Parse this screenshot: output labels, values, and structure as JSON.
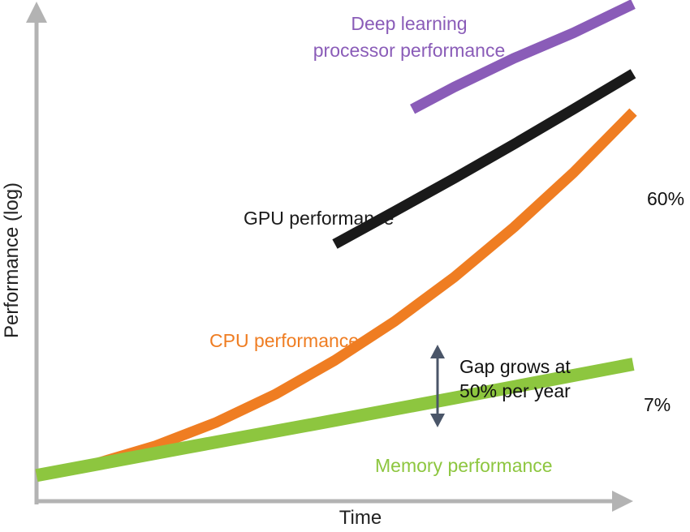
{
  "chart_data": {
    "type": "line",
    "title": "",
    "xlabel": "Time",
    "ylabel": "Performance (log)",
    "x_scale": "normalized time (0 = start, 1 = end)",
    "y_scale": "normalized log performance (0 = bottom, 1 = top)",
    "xlim": [
      0,
      1
    ],
    "ylim": [
      0,
      1
    ],
    "grid": false,
    "series": [
      {
        "key": "memory",
        "name": "Memory performance",
        "color": "#8dc63f",
        "end_label": "7%",
        "x": [
          0.0,
          0.25,
          0.5,
          0.75,
          1.0
        ],
        "y": [
          0.018,
          0.076,
          0.133,
          0.191,
          0.25
        ]
      },
      {
        "key": "cpu",
        "name": "CPU performance",
        "color": "#ef7d22",
        "end_label": "60%",
        "x": [
          0.0,
          0.1,
          0.2,
          0.3,
          0.4,
          0.5,
          0.6,
          0.7,
          0.8,
          0.9,
          1.0
        ],
        "y": [
          0.018,
          0.043,
          0.08,
          0.128,
          0.187,
          0.258,
          0.339,
          0.431,
          0.535,
          0.649,
          0.775
        ]
      },
      {
        "key": "gpu",
        "name": "GPU performance",
        "color": "#1a1a1a",
        "x": [
          0.5,
          0.6,
          0.7,
          0.8,
          0.9,
          1.0
        ],
        "y": [
          0.5,
          0.568,
          0.637,
          0.708,
          0.781,
          0.855
        ]
      },
      {
        "key": "dl",
        "name": "Deep learning processor performance",
        "name_lines": [
          "Deep learning",
          "processor performance"
        ],
        "color": "#8a5cb8",
        "x": [
          0.63,
          0.7,
          0.8,
          0.9,
          1.0
        ],
        "y": [
          0.781,
          0.827,
          0.887,
          0.94,
          1.0
        ]
      }
    ],
    "annotations": [
      {
        "type": "double-arrow",
        "between": [
          "memory",
          "cpu"
        ],
        "lines": [
          "Gap grows at",
          "50% per year"
        ],
        "color": "#4a5568"
      }
    ]
  }
}
